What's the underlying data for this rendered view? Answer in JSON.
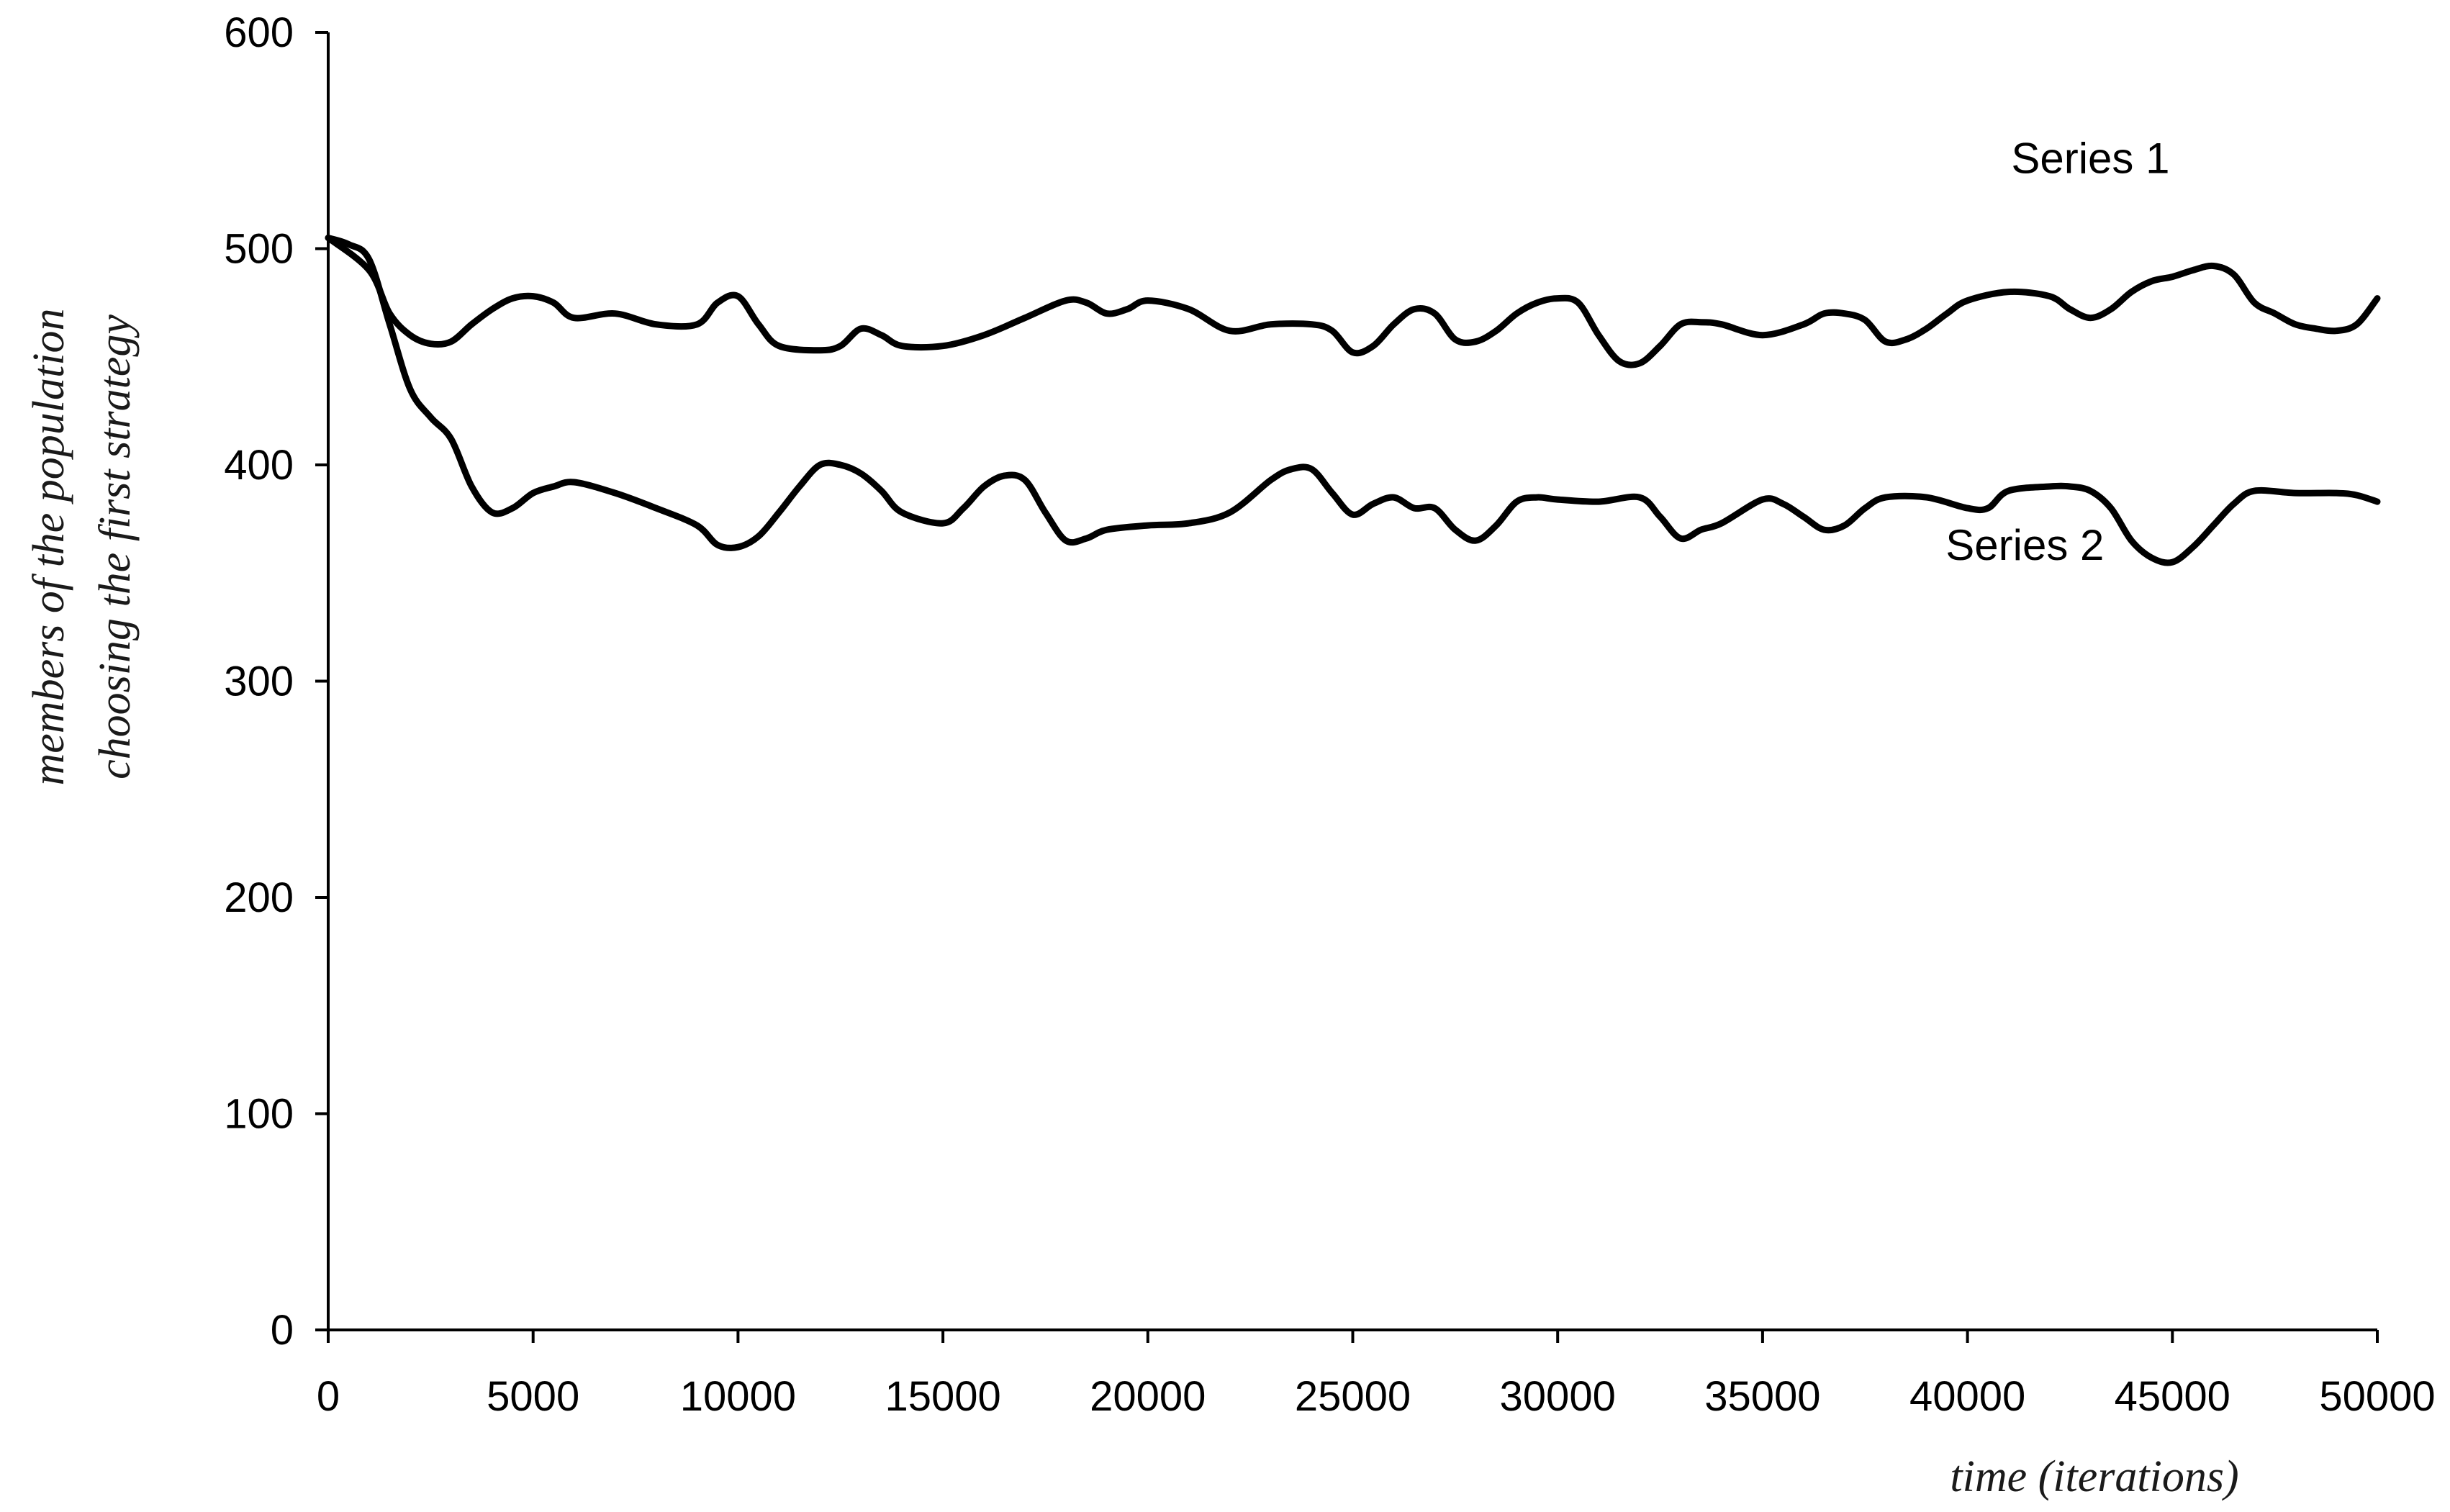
{
  "chart_data": {
    "type": "line",
    "title": "",
    "xlabel": "time (iterations)",
    "ylabel_line1": "members of the population",
    "ylabel_line2": "choosing the first strategy",
    "xlim": [
      0,
      50000
    ],
    "ylim": [
      0,
      600
    ],
    "xticks": [
      0,
      5000,
      10000,
      15000,
      20000,
      25000,
      30000,
      35000,
      40000,
      45000,
      50000
    ],
    "yticks": [
      0,
      100,
      200,
      300,
      400,
      500,
      600
    ],
    "grid": false,
    "legend": "none",
    "series": [
      {
        "name": "Series 1",
        "label_anchor": [
          43000,
          535
        ],
        "x": [
          0,
          1000,
          1500,
          2000,
          2500,
          3000,
          3500,
          4000,
          4500,
          5000,
          5500,
          6000,
          7000,
          8000,
          9000,
          9500,
          10000,
          10500,
          11000,
          12000,
          12500,
          13000,
          13500,
          14000,
          15000,
          16000,
          17000,
          18000,
          18500,
          19000,
          19500,
          20000,
          21000,
          22000,
          23000,
          24000,
          24500,
          25000,
          25500,
          26000,
          26500,
          27000,
          27500,
          28000,
          28500,
          29000,
          29500,
          30000,
          30500,
          31000,
          31500,
          32000,
          32500,
          33000,
          33500,
          34000,
          35000,
          36000,
          36500,
          37000,
          37500,
          38000,
          38500,
          39000,
          39500,
          40000,
          41000,
          42000,
          42500,
          43000,
          43500,
          44000,
          44500,
          45000,
          45500,
          46000,
          46500,
          47000,
          47500,
          48000,
          48500,
          49000,
          49500,
          50000
        ],
        "y": [
          505,
          490,
          470,
          460,
          456,
          457,
          465,
          472,
          477,
          478,
          475,
          468,
          470,
          465,
          465,
          475,
          478,
          465,
          455,
          453,
          455,
          463,
          460,
          455,
          455,
          460,
          468,
          476,
          475,
          470,
          472,
          476,
          472,
          462,
          465,
          465,
          462,
          452,
          455,
          465,
          472,
          470,
          458,
          457,
          462,
          470,
          475,
          477,
          475,
          460,
          448,
          447,
          455,
          465,
          466,
          465,
          460,
          465,
          470,
          470,
          467,
          457,
          458,
          463,
          470,
          476,
          480,
          478,
          472,
          468,
          472,
          480,
          485,
          487,
          490,
          492,
          488,
          475,
          470,
          465,
          463,
          462,
          465,
          477
        ]
      },
      {
        "name": "Series 2",
        "label_anchor": [
          41400,
          356
        ],
        "x": [
          0,
          500,
          1000,
          1500,
          2000,
          2500,
          3000,
          3500,
          4000,
          4500,
          5000,
          5500,
          6000,
          7000,
          8000,
          9000,
          9500,
          10000,
          10500,
          11000,
          11500,
          12000,
          12500,
          13000,
          13500,
          14000,
          15000,
          15500,
          16000,
          16500,
          17000,
          17500,
          18000,
          18500,
          19000,
          20000,
          21000,
          22000,
          23000,
          23500,
          24000,
          24500,
          25000,
          25500,
          26000,
          26500,
          27000,
          27500,
          28000,
          28500,
          29000,
          29500,
          30000,
          31000,
          32000,
          32500,
          33000,
          33500,
          34000,
          35000,
          35500,
          36000,
          36500,
          37000,
          37500,
          38000,
          39000,
          40000,
          40500,
          41000,
          42000,
          42500,
          43000,
          43500,
          44000,
          44500,
          45000,
          45500,
          46000,
          46500,
          47000,
          48000,
          49000,
          49500,
          50000
        ],
        "y": [
          505,
          502,
          495,
          465,
          435,
          422,
          412,
          390,
          378,
          380,
          387,
          390,
          392,
          387,
          380,
          372,
          363,
          362,
          367,
          378,
          390,
          400,
          400,
          396,
          388,
          378,
          373,
          380,
          390,
          395,
          393,
          378,
          365,
          366,
          370,
          372,
          373,
          378,
          393,
          398,
          398,
          387,
          377,
          382,
          385,
          380,
          380,
          370,
          365,
          372,
          383,
          385,
          384,
          383,
          385,
          376,
          366,
          370,
          373,
          384,
          382,
          376,
          370,
          372,
          380,
          385,
          385,
          380,
          380,
          388,
          390,
          390,
          388,
          380,
          365,
          357,
          355,
          362,
          372,
          382,
          388,
          387,
          387,
          386,
          383
        ]
      }
    ]
  }
}
